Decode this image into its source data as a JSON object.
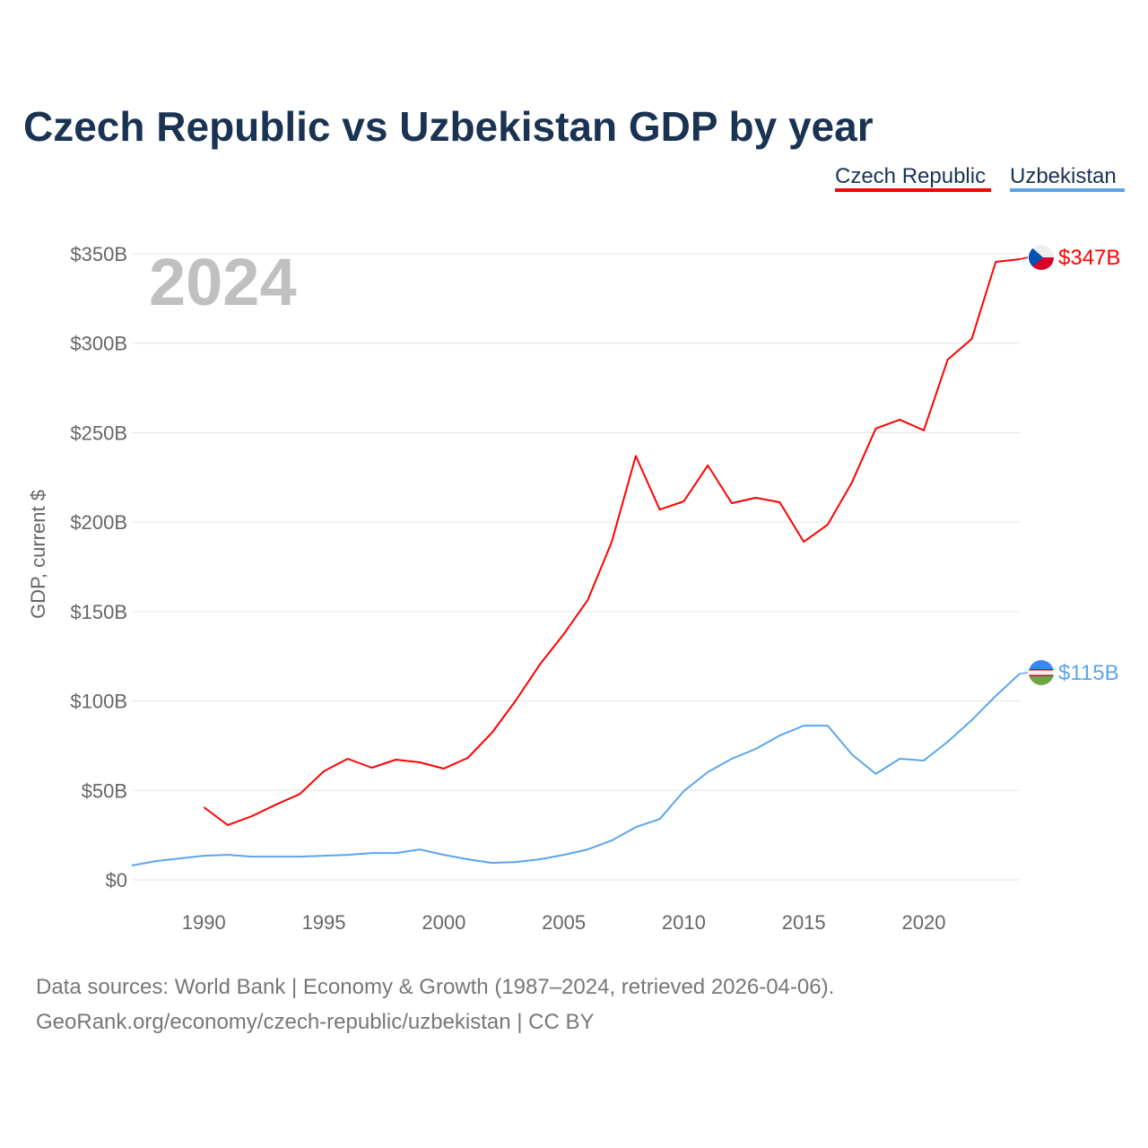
{
  "chart_data": {
    "type": "line",
    "title": "Czech Republic vs Uzbekistan GDP by year",
    "ylabel": "GDP, current $",
    "xlabel": "",
    "year_watermark": "2024",
    "ylim": [
      0,
      350
    ],
    "xlim": [
      1987,
      2024
    ],
    "y_ticks": [
      0,
      50,
      100,
      150,
      200,
      250,
      300,
      350
    ],
    "y_tick_labels": [
      "$0",
      "$50B",
      "$100B",
      "$150B",
      "$200B",
      "$250B",
      "$300B",
      "$350B"
    ],
    "x_ticks": [
      1990,
      1995,
      2000,
      2005,
      2010,
      2015,
      2020
    ],
    "x_tick_labels": [
      "1990",
      "1995",
      "2000",
      "2005",
      "2010",
      "2015",
      "2020"
    ],
    "grid": true,
    "legend_position": "top-right",
    "series": [
      {
        "name": "Czech Republic",
        "color": "#ff0000",
        "end_label": "$347B",
        "x": [
          1990,
          1991,
          1992,
          1993,
          1994,
          1995,
          1996,
          1997,
          1998,
          1999,
          2000,
          2001,
          2002,
          2003,
          2004,
          2005,
          2006,
          2007,
          2008,
          2009,
          2010,
          2011,
          2012,
          2013,
          2014,
          2015,
          2016,
          2017,
          2018,
          2019,
          2020,
          2021,
          2022,
          2023,
          2024
        ],
        "values": [
          40.6,
          30.6,
          35.6,
          42,
          48,
          60.7,
          67.7,
          62.7,
          67.2,
          65.7,
          62.2,
          68.2,
          82.2,
          100.3,
          120.4,
          137.4,
          156.5,
          189,
          237,
          207,
          211.6,
          231.7,
          210.6,
          213.6,
          211.1,
          189,
          198.6,
          222,
          252.3,
          257.3,
          251.3,
          290.9,
          302.4,
          345.5,
          347
        ]
      },
      {
        "name": "Uzbekistan",
        "color": "#5aa5ec",
        "end_label": "$115B",
        "x": [
          1987,
          1988,
          1989,
          1990,
          1991,
          1992,
          1993,
          1994,
          1995,
          1996,
          1997,
          1998,
          1999,
          2000,
          2001,
          2002,
          2003,
          2004,
          2005,
          2006,
          2007,
          2008,
          2009,
          2010,
          2011,
          2012,
          2013,
          2014,
          2015,
          2016,
          2017,
          2018,
          2019,
          2020,
          2021,
          2022,
          2023,
          2024
        ],
        "values": [
          8,
          10.5,
          12,
          13.5,
          14,
          13,
          13,
          13,
          13.5,
          14,
          15,
          15,
          17,
          14,
          11.5,
          9.5,
          10,
          11.5,
          14,
          17,
          22,
          29.5,
          34,
          49.6,
          60.2,
          67.7,
          73.2,
          80.7,
          86.2,
          86.2,
          70.2,
          59.2,
          67.7,
          66.7,
          77.2,
          89.3,
          102.8,
          115.3
        ]
      }
    ]
  },
  "footer": {
    "line1": "Data sources: World Bank | Economy & Growth (1987–2024, retrieved 2026-04-06).",
    "line2": "GeoRank.org/economy/czech-republic/uzbekistan | CC BY"
  }
}
